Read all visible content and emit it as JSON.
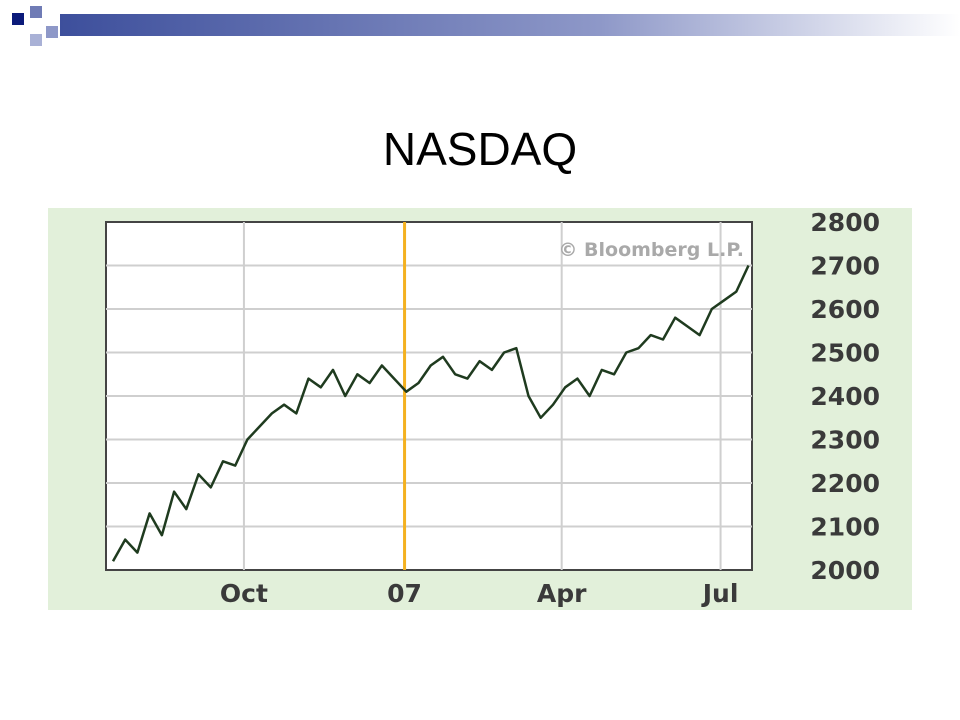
{
  "slide": {
    "title": "NASDAQ"
  },
  "colors": {
    "panel_bg": "#e2f0da",
    "plot_bg": "#ffffff",
    "grid": "#cfcfcf",
    "line": "#1f3b1f",
    "marker": "#f4b120",
    "watermark": "#a9a9a9",
    "header_bar": "#3d4f9c",
    "header_square": "#0b1a7a"
  },
  "chart_data": {
    "type": "line",
    "watermark": "© Bloomberg L.P.",
    "x_tick_labels": [
      "Oct",
      "07",
      "Apr",
      "Jul"
    ],
    "y_tick_labels": [
      "2800",
      "2700",
      "2600",
      "2500",
      "2400",
      "2300",
      "2200",
      "2100",
      "2000"
    ],
    "ylim": [
      2000,
      2800
    ],
    "x_axis_position": "bottom",
    "y_axis_position": "right",
    "grid": true,
    "vertical_marker": "07",
    "series": [
      {
        "x": [
          "2006-07-18",
          "2006-07-25",
          "2006-08-01",
          "2006-08-08",
          "2006-08-15",
          "2006-08-22",
          "2006-08-29",
          "2006-09-05",
          "2006-09-12",
          "2006-09-19",
          "2006-09-26",
          "2006-10-03",
          "2006-10-10",
          "2006-10-17",
          "2006-10-24",
          "2006-10-31",
          "2006-11-07",
          "2006-11-14",
          "2006-11-21",
          "2006-11-28",
          "2006-12-05",
          "2006-12-12",
          "2006-12-19",
          "2006-12-26",
          "2007-01-02",
          "2007-01-09",
          "2007-01-16",
          "2007-01-23",
          "2007-01-30",
          "2007-02-06",
          "2007-02-13",
          "2007-02-20",
          "2007-02-27",
          "2007-03-06",
          "2007-03-13",
          "2007-03-20",
          "2007-03-27",
          "2007-04-03",
          "2007-04-10",
          "2007-04-17",
          "2007-04-24",
          "2007-05-01",
          "2007-05-08",
          "2007-05-15",
          "2007-05-22",
          "2007-05-29",
          "2007-06-05",
          "2007-06-12",
          "2007-06-19",
          "2007-06-26",
          "2007-07-03",
          "2007-07-10",
          "2007-07-17"
        ],
        "y": [
          2020,
          2070,
          2040,
          2130,
          2080,
          2180,
          2140,
          2220,
          2190,
          2250,
          2240,
          2300,
          2330,
          2360,
          2380,
          2360,
          2440,
          2420,
          2460,
          2400,
          2450,
          2430,
          2470,
          2440,
          2410,
          2430,
          2470,
          2490,
          2450,
          2440,
          2480,
          2460,
          2500,
          2510,
          2400,
          2350,
          2380,
          2420,
          2440,
          2400,
          2460,
          2450,
          2500,
          2510,
          2540,
          2530,
          2580,
          2560,
          2540,
          2600,
          2620,
          2640,
          2700
        ]
      }
    ]
  }
}
